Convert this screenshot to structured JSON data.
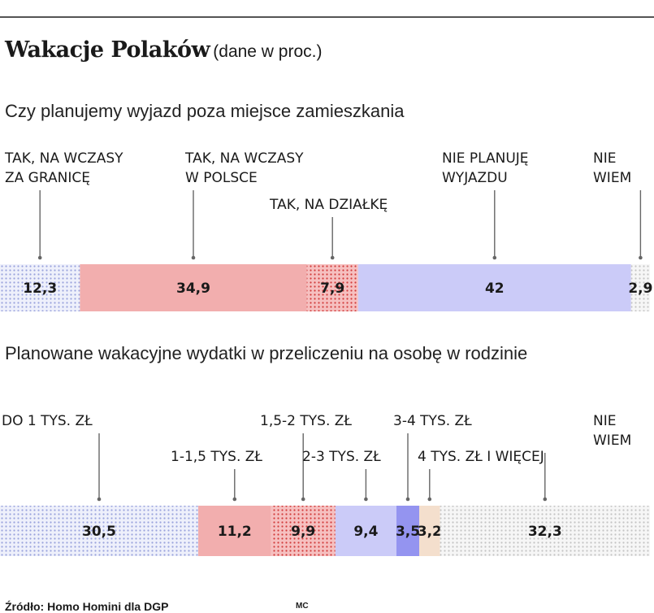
{
  "title": "Wakacje Polaków",
  "title_note": "(dane w proc.)",
  "source": "Źródło: Homo Homini dla DGP",
  "credit": "MC",
  "chart_data": [
    {
      "type": "bar",
      "orientation": "horizontal-stacked",
      "title": "Czy planujemy wyjazd poza miejsce zamieszkania",
      "categories": [
        [
          "TAK, NA WCZASY",
          "ZA GRANICĘ"
        ],
        [
          "TAK, NA WCZASY",
          "W POLSCE"
        ],
        [
          "TAK, NA DZIAŁKĘ"
        ],
        [
          "NIE PLANUJĘ",
          "WYJAZDU"
        ],
        [
          "NIE",
          "WIEM"
        ]
      ],
      "values": [
        12.3,
        34.9,
        7.9,
        42,
        2.9
      ],
      "value_labels": [
        "12,3",
        "34,9",
        "7,9",
        "42",
        "2,9"
      ],
      "colors": [
        "#dde1f6",
        "#f2aeae",
        "#ee8f8f",
        "#cbcbf8",
        "#e9e9e9"
      ],
      "patterns": [
        "dots-blue",
        "solid",
        "dots-red",
        "solid",
        "dots-grey"
      ]
    },
    {
      "type": "bar",
      "orientation": "horizontal-stacked",
      "title": "Planowane wakacyjne wydatki w przeliczeniu na osobę w rodzinie",
      "categories": [
        [
          "DO 1 TYS. ZŁ"
        ],
        [
          "1-1,5 TYS. ZŁ"
        ],
        [
          "1,5-2 TYS. ZŁ"
        ],
        [
          "2-3 TYS. ZŁ"
        ],
        [
          "3-4 TYS. ZŁ"
        ],
        [
          "4 TYS. ZŁ I WIĘCEJ"
        ],
        [
          "NIE",
          "WIEM"
        ]
      ],
      "values": [
        30.5,
        11.2,
        9.9,
        9.4,
        3.5,
        3.2,
        32.3
      ],
      "value_labels": [
        "30,5",
        "11,2",
        "9,9",
        "9,4",
        "3,5",
        "3,2",
        "32,3"
      ],
      "colors": [
        "#dde1f6",
        "#f2aeae",
        "#ee8f8f",
        "#cbcbf8",
        "#9494f0",
        "#f4dfcd",
        "#e9e9e9"
      ],
      "patterns": [
        "dots-blue",
        "solid",
        "dots-red",
        "solid",
        "solid",
        "solid",
        "dots-grey"
      ]
    }
  ]
}
